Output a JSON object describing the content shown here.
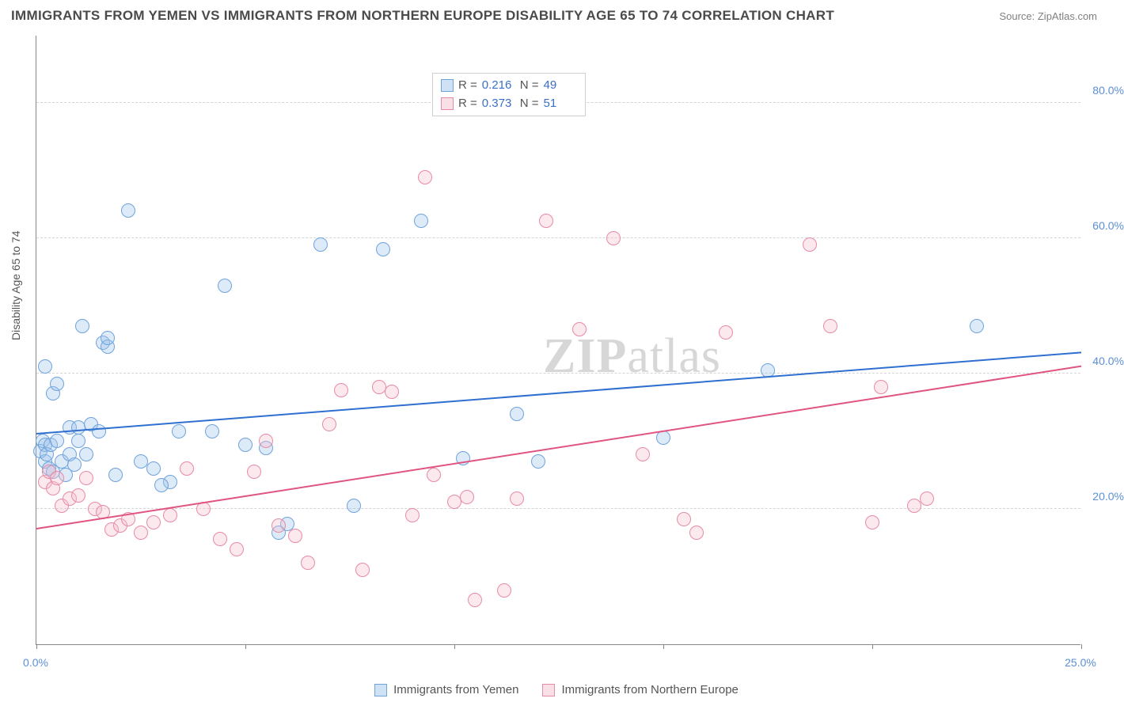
{
  "title": "IMMIGRANTS FROM YEMEN VS IMMIGRANTS FROM NORTHERN EUROPE DISABILITY AGE 65 TO 74 CORRELATION CHART",
  "source": "Source: ZipAtlas.com",
  "y_axis_title": "Disability Age 65 to 74",
  "watermark_bold": "ZIP",
  "watermark_rest": "atlas",
  "chart": {
    "type": "scatter",
    "xlim": [
      0,
      25
    ],
    "ylim": [
      0,
      90
    ],
    "x_ticks": [
      0,
      5,
      10,
      15,
      20,
      25
    ],
    "x_tick_labels": {
      "0": "0.0%",
      "25": "25.0%"
    },
    "y_gridlines": [
      20,
      40,
      60,
      80
    ],
    "y_tick_labels": {
      "20": "20.0%",
      "40": "40.0%",
      "60": "60.0%",
      "80": "80.0%"
    },
    "background_color": "#ffffff",
    "grid_color": "#d5d5d5",
    "axis_color": "#888888",
    "point_radius": 9,
    "point_fill_opacity": 0.35,
    "point_stroke_width": 1.5,
    "series": [
      {
        "name": "Immigrants from Yemen",
        "color_fill": "#9ec4ec",
        "color_stroke": "#6fa3dd",
        "trend_color": "#2f6fd0",
        "trend_y_start": 31,
        "trend_y_end": 43,
        "R": "0.216",
        "N": "49",
        "points": [
          [
            0.1,
            28.5
          ],
          [
            0.15,
            30
          ],
          [
            0.2,
            27
          ],
          [
            0.2,
            29.5
          ],
          [
            0.25,
            28
          ],
          [
            0.2,
            41
          ],
          [
            0.4,
            37
          ],
          [
            0.5,
            38.5
          ],
          [
            0.3,
            26
          ],
          [
            0.35,
            29.5
          ],
          [
            0.5,
            30
          ],
          [
            0.6,
            27
          ],
          [
            0.7,
            25
          ],
          [
            0.8,
            28
          ],
          [
            0.8,
            32
          ],
          [
            0.9,
            26.5
          ],
          [
            1.0,
            32
          ],
          [
            1.0,
            30
          ],
          [
            1.1,
            47
          ],
          [
            1.2,
            28
          ],
          [
            1.3,
            32.5
          ],
          [
            1.5,
            31.5
          ],
          [
            1.6,
            44.5
          ],
          [
            1.7,
            44
          ],
          [
            1.7,
            45.2
          ],
          [
            2.2,
            64
          ],
          [
            2.5,
            27
          ],
          [
            2.8,
            26
          ],
          [
            3.2,
            24
          ],
          [
            3.4,
            31.5
          ],
          [
            4.2,
            31.5
          ],
          [
            4.5,
            53
          ],
          [
            5.0,
            29.5
          ],
          [
            5.5,
            29
          ],
          [
            5.8,
            16.5
          ],
          [
            6.8,
            59
          ],
          [
            7.6,
            20.5
          ],
          [
            8.3,
            58.3
          ],
          [
            9.2,
            62.5
          ],
          [
            10.2,
            27.5
          ],
          [
            11.5,
            34
          ],
          [
            12.0,
            27
          ],
          [
            15.0,
            30.5
          ],
          [
            17.5,
            40.5
          ],
          [
            22.5,
            47
          ],
          [
            6.0,
            17.8
          ],
          [
            3.0,
            23.5
          ],
          [
            0.4,
            25.5
          ],
          [
            1.9,
            25
          ]
        ]
      },
      {
        "name": "Immigrants from Northern Europe",
        "color_fill": "#f4c0cd",
        "color_stroke": "#e88aa5",
        "trend_color": "#e05580",
        "trend_y_start": 17,
        "trend_y_end": 41,
        "R": "0.373",
        "N": "51",
        "points": [
          [
            0.2,
            24
          ],
          [
            0.3,
            25.5
          ],
          [
            0.4,
            23
          ],
          [
            0.5,
            24.5
          ],
          [
            0.6,
            20.5
          ],
          [
            0.8,
            21.5
          ],
          [
            1.0,
            22
          ],
          [
            1.2,
            24.5
          ],
          [
            1.4,
            20
          ],
          [
            1.6,
            19.5
          ],
          [
            1.8,
            17
          ],
          [
            2.0,
            17.5
          ],
          [
            2.2,
            18.5
          ],
          [
            2.5,
            16.5
          ],
          [
            2.8,
            18
          ],
          [
            3.2,
            19
          ],
          [
            3.6,
            26
          ],
          [
            4.0,
            20
          ],
          [
            4.4,
            15.5
          ],
          [
            4.8,
            14
          ],
          [
            5.2,
            25.5
          ],
          [
            5.5,
            30
          ],
          [
            5.8,
            17.5
          ],
          [
            6.2,
            16
          ],
          [
            6.5,
            12
          ],
          [
            7.0,
            32.5
          ],
          [
            7.3,
            37.5
          ],
          [
            7.8,
            11
          ],
          [
            8.2,
            38
          ],
          [
            8.5,
            37.3
          ],
          [
            9.0,
            19
          ],
          [
            9.3,
            69
          ],
          [
            9.5,
            25
          ],
          [
            10.0,
            21
          ],
          [
            10.3,
            21.8
          ],
          [
            10.5,
            6.5
          ],
          [
            11.2,
            8
          ],
          [
            11.5,
            21.5
          ],
          [
            12.2,
            62.5
          ],
          [
            13.0,
            46.5
          ],
          [
            13.8,
            60
          ],
          [
            14.5,
            28
          ],
          [
            15.5,
            18.5
          ],
          [
            15.8,
            16.5
          ],
          [
            16.5,
            46
          ],
          [
            18.5,
            59
          ],
          [
            19.0,
            47
          ],
          [
            20.2,
            38
          ],
          [
            21.0,
            20.5
          ],
          [
            21.3,
            21.5
          ],
          [
            20.0,
            18
          ]
        ]
      }
    ]
  },
  "stats_legend": {
    "r_label": "R  =",
    "n_label": "N  ="
  },
  "bottom_legend": {
    "series1": "Immigrants from Yemen",
    "series2": "Immigrants from Northern Europe"
  }
}
